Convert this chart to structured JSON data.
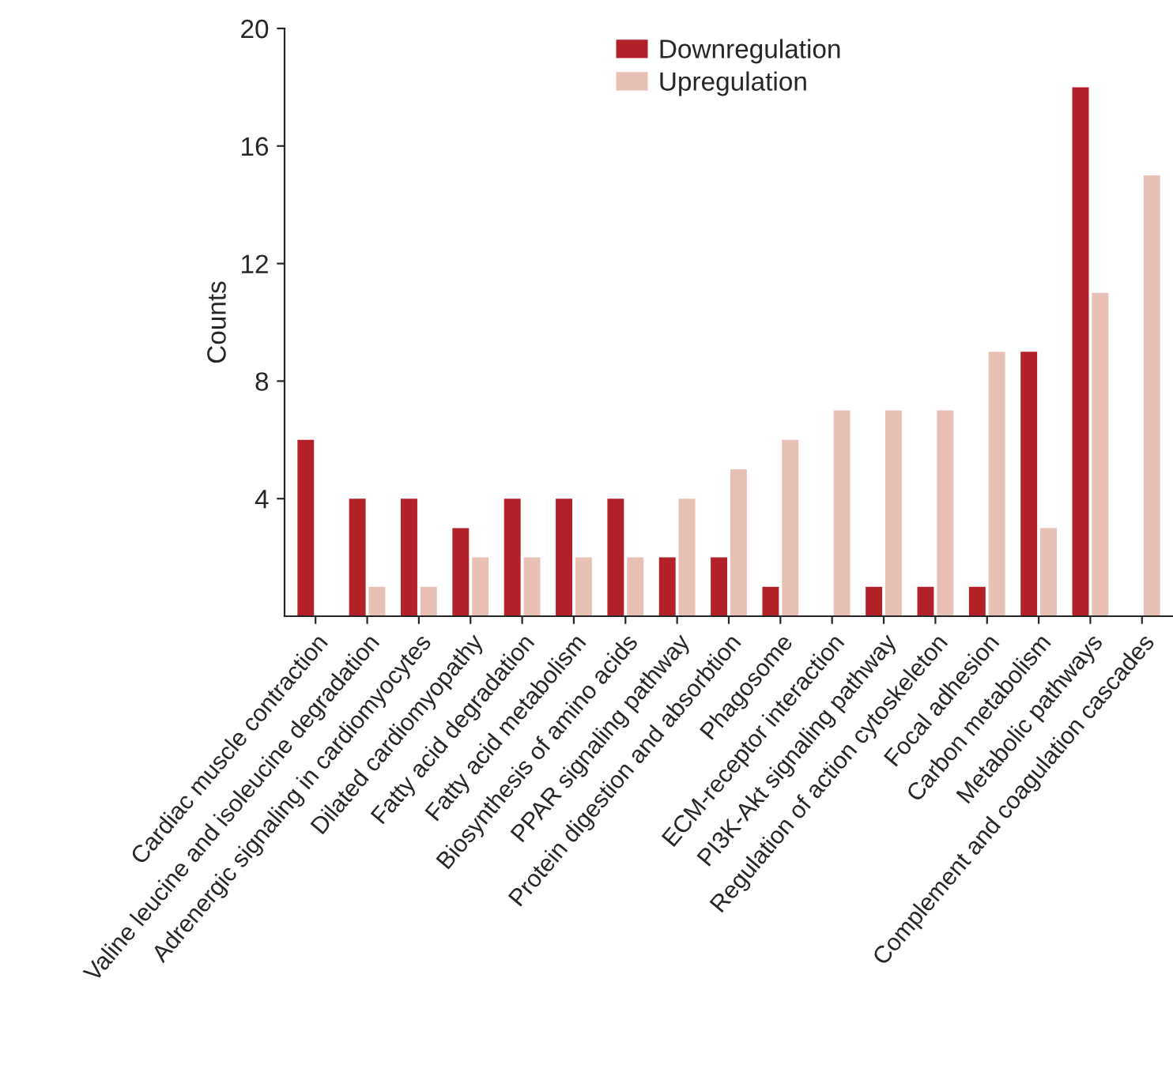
{
  "chart_data": {
    "type": "bar",
    "ylabel": "Counts",
    "categories": [
      "Cardiac muscle contraction",
      "Valine leucine and isoleucine degradation",
      "Adrenergic signaling in cardiomyocytes",
      "Dilated cardiomyopathy",
      "Fatty acid degradation",
      "Fatty acid metabolism",
      "Biosynthesis of amino acids",
      "PPAR signaling pathway",
      "Protein digestion and absorbtion",
      "Phagosome",
      "ECM-receptor interaction",
      "PI3K-Akt signaling pathway",
      "Regulation of action cytoskeleton",
      "Focal adhesion",
      "Carbon metabolism",
      "Metabolic pathways",
      "Complement and coagulation cascades"
    ],
    "series": [
      {
        "name": "Downregulation",
        "color": "#b22028",
        "values": [
          6,
          4,
          4,
          3,
          4,
          4,
          4,
          2,
          2,
          1,
          null,
          1,
          1,
          1,
          9,
          18,
          null
        ]
      },
      {
        "name": "Upregulation",
        "color": "#e8c0b4",
        "values": [
          null,
          1,
          1,
          2,
          2,
          2,
          2,
          4,
          5,
          6,
          7,
          7,
          7,
          9,
          3,
          11,
          15
        ]
      }
    ],
    "ylim": [
      0,
      20
    ],
    "yticks": [
      4,
      8,
      12,
      16,
      20
    ],
    "legend": "top"
  }
}
